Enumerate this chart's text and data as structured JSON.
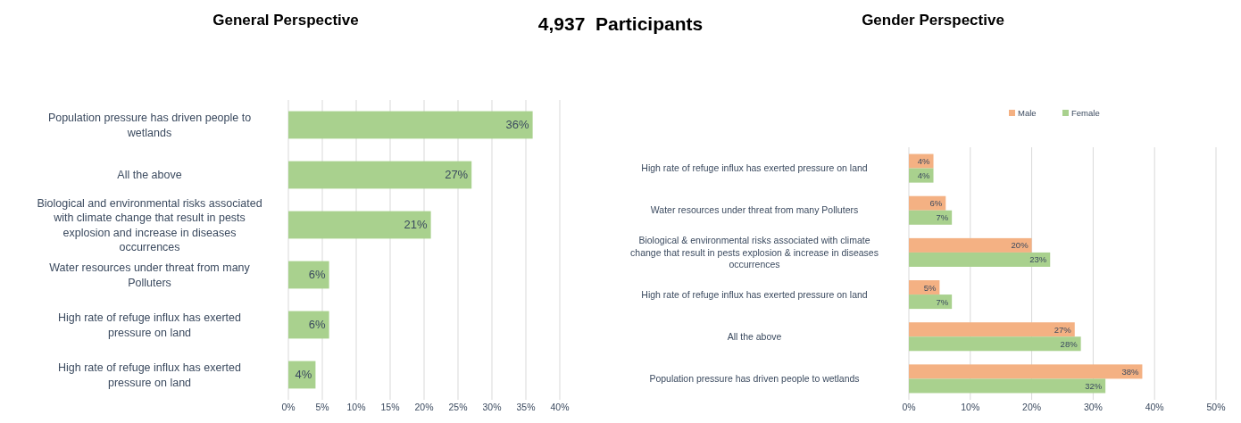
{
  "chart_data": [
    {
      "type": "bar",
      "orientation": "horizontal",
      "title": "General Perspective",
      "annotations": [
        "4,937  Participants"
      ],
      "categories": [
        "Population pressure has driven people to wetlands",
        "All the above",
        "Biological and environmental risks associated with climate change that result in pests explosion and increase in diseases occurrences",
        "Water resources under threat from many Polluters",
        "High rate of refuge influx has exerted pressure on land",
        "High rate of refuge influx has exerted pressure on land"
      ],
      "series": [
        {
          "color": "#a9d18e",
          "values": [
            36,
            27,
            21,
            6,
            6,
            4
          ],
          "value_labels": [
            "36%",
            "27%",
            "21%",
            "6%",
            "6%",
            "4%"
          ]
        }
      ],
      "xlim": [
        0,
        40
      ],
      "xticks": [
        {
          "value": 0,
          "label": "0%"
        },
        {
          "value": 5,
          "label": "5%"
        },
        {
          "value": 10,
          "label": "10%"
        },
        {
          "value": 15,
          "label": "15%"
        },
        {
          "value": 20,
          "label": "20%"
        },
        {
          "value": 25,
          "label": "25%"
        },
        {
          "value": 30,
          "label": "30%"
        },
        {
          "value": 35,
          "label": "35%"
        },
        {
          "value": 40,
          "label": "40%"
        }
      ],
      "grid": "x",
      "legend": false
    },
    {
      "type": "bar",
      "orientation": "horizontal",
      "title": "Gender Perspective",
      "categories": [
        "High rate of refuge influx has exerted pressure on land",
        "Water resources under threat from many Polluters",
        "Biological & environmental risks associated with climate change that result in pests explosion & increase in diseases occurrences",
        "High rate of refuge influx has exerted pressure on land",
        "All the above",
        "Population pressure has driven people to wetlands"
      ],
      "series": [
        {
          "name": "Male",
          "color": "#f4b183",
          "values": [
            4,
            6,
            20,
            5,
            27,
            38
          ],
          "value_labels": [
            "4%",
            "6%",
            "20%",
            "5%",
            "27%",
            "38%"
          ]
        },
        {
          "name": "Female",
          "color": "#a9d18e",
          "values": [
            4,
            7,
            23,
            7,
            28,
            32
          ],
          "value_labels": [
            "4%",
            "7%",
            "23%",
            "7%",
            "28%",
            "32%"
          ]
        }
      ],
      "xlim": [
        0,
        50
      ],
      "xticks": [
        {
          "value": 0,
          "label": "0%"
        },
        {
          "value": 10,
          "label": "10%"
        },
        {
          "value": 20,
          "label": "20%"
        },
        {
          "value": 30,
          "label": "30%"
        },
        {
          "value": 40,
          "label": "40%"
        },
        {
          "value": 50,
          "label": "50%"
        }
      ],
      "grid": "x",
      "legend": "top"
    }
  ]
}
